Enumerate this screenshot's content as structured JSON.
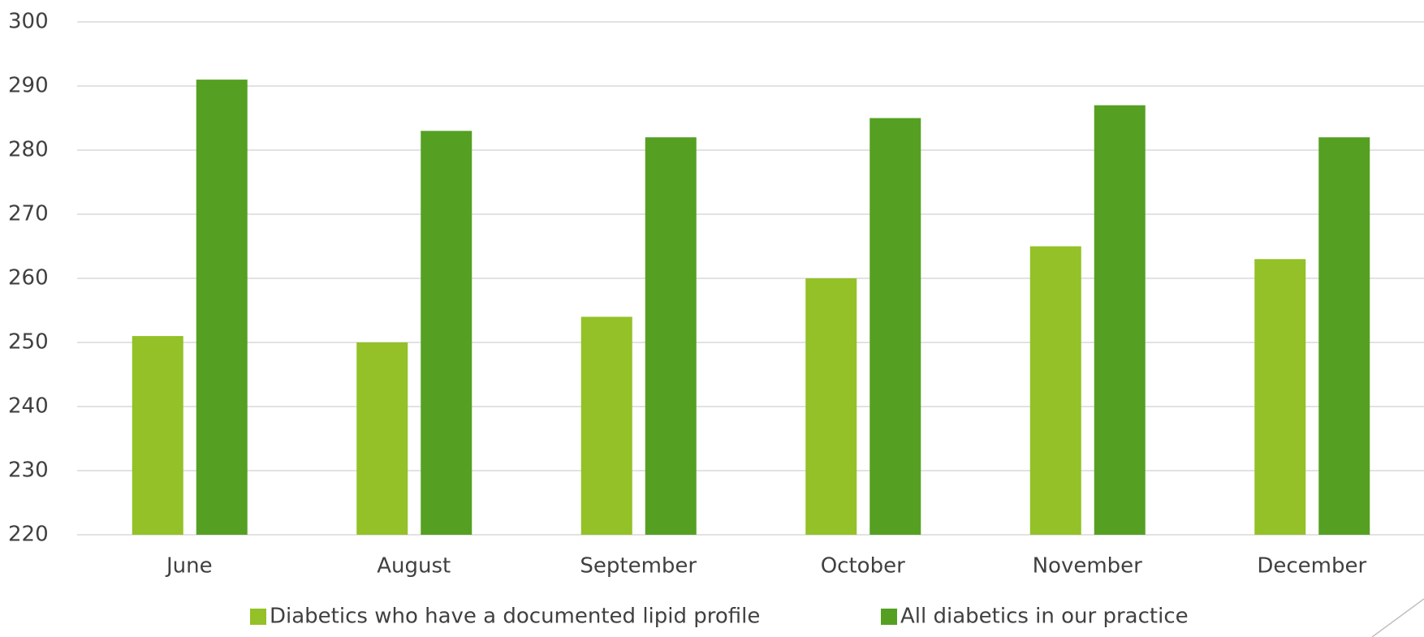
{
  "chart_data": {
    "type": "bar",
    "categories": [
      "June",
      "August",
      "September",
      "October",
      "November",
      "December"
    ],
    "series": [
      {
        "name": "Diabetics who have a documented lipid profile",
        "color": "#93c127",
        "values": [
          251,
          250,
          254,
          260,
          265,
          263
        ]
      },
      {
        "name": "All diabetics in our practice",
        "color": "#55a022",
        "values": [
          291,
          283,
          282,
          285,
          287,
          282
        ]
      }
    ],
    "ylim": [
      220,
      300
    ],
    "yticks": [
      220,
      230,
      240,
      250,
      260,
      270,
      280,
      290,
      300
    ],
    "grid": true,
    "legend": "bottom"
  }
}
